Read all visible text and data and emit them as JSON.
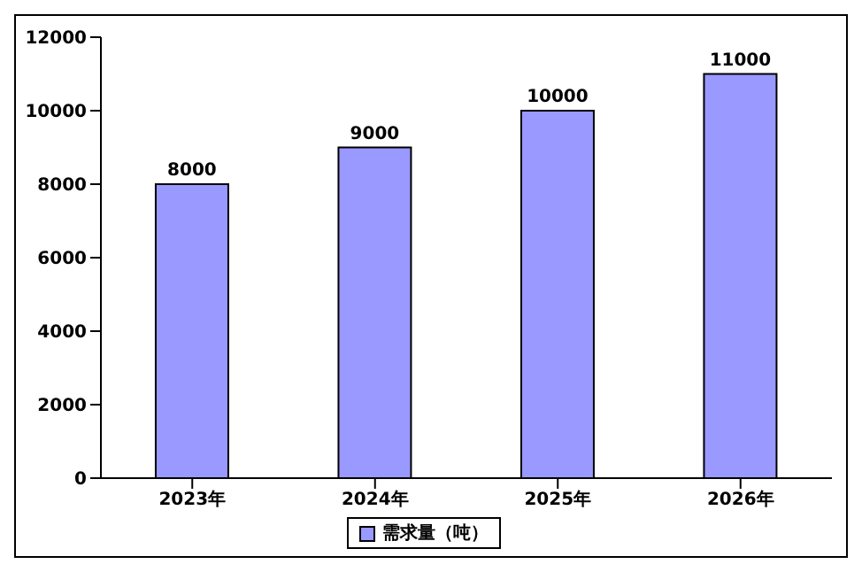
{
  "chart_data": {
    "type": "bar",
    "categories": [
      "2023年",
      "2024年",
      "2025年",
      "2026年"
    ],
    "series": [
      {
        "name": "需求量（吨）",
        "color": "#9999ff",
        "values": [
          8000,
          9000,
          10000,
          11000
        ]
      }
    ],
    "ylim": [
      0,
      12000
    ],
    "yticks": [
      0,
      2000,
      4000,
      6000,
      8000,
      10000,
      12000
    ],
    "data_labels": true,
    "legend": "bottom",
    "grid": false
  }
}
